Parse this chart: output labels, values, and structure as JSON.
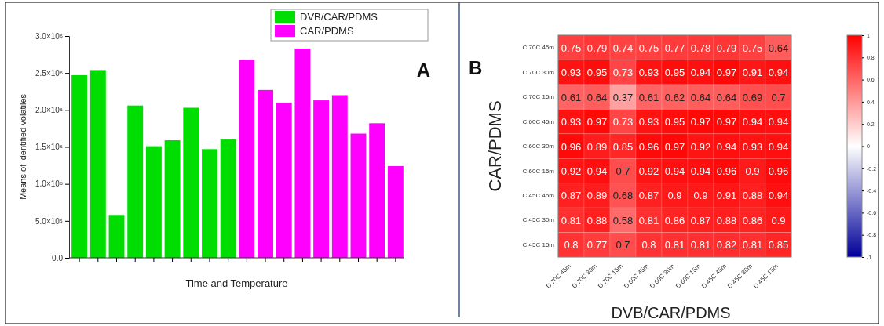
{
  "chart_data": [
    {
      "type": "bar",
      "xlabel": "Time and Temperature",
      "ylabel": "Means of identified volatiles",
      "annotations": [
        "A"
      ],
      "categories": [
        null,
        null,
        null,
        null,
        null,
        null,
        null,
        null,
        null,
        null,
        null,
        null,
        null,
        null,
        null,
        null,
        null,
        null
      ],
      "series": [
        {
          "name": "DVB/CAR/PDMS",
          "color": "#00dd00",
          "values": [
            2470000,
            2540000,
            580000,
            2060000,
            1510000,
            1590000,
            2030000,
            1470000,
            1600000,
            null,
            null,
            null,
            null,
            null,
            null,
            null,
            null,
            null
          ]
        },
        {
          "name": "CAR/PDMS",
          "color": "#ff00ff",
          "values": [
            null,
            null,
            null,
            null,
            null,
            null,
            null,
            null,
            null,
            2680000,
            2270000,
            2100000,
            2830000,
            2130000,
            2200000,
            1680000,
            1820000,
            1240000
          ]
        }
      ],
      "ylim": [
        0,
        3000000
      ],
      "yticks": [
        {
          "value": 0,
          "label": "0.0"
        },
        {
          "value": 500000,
          "label": "5.0×10⁵"
        },
        {
          "value": 1000000,
          "label": "1.0×10⁶"
        },
        {
          "value": 1500000,
          "label": "1.5×10⁶"
        },
        {
          "value": 2000000,
          "label": "2.0×10⁶"
        },
        {
          "value": 2500000,
          "label": "2.5×10⁶"
        },
        {
          "value": 3000000,
          "label": "3.0×10⁶"
        }
      ],
      "legend": "top right"
    },
    {
      "type": "heatmap",
      "xlabel": "DVB/CAR/PDMS",
      "ylabel": "CAR/PDMS",
      "annotations": [
        "B"
      ],
      "categories": [
        "D 70C 45m",
        "D 70C 30m",
        "D 70C 15m",
        "D 60C 45m",
        "D 60C 30m",
        "D 60C 15m",
        "D 45C 45m",
        "D 45C 30m",
        "D 45C 15m"
      ],
      "y_categories": [
        "C 70C 45m",
        "C 70C 30m",
        "C 70C 15m",
        "C 60C 45m",
        "C 60C 30m",
        "C 60C 15m",
        "C 45C 45m",
        "C 45C 30m",
        "C 45C 15m"
      ],
      "cells": [
        [
          0.75,
          0.79,
          0.74,
          0.75,
          0.77,
          0.78,
          0.79,
          0.75,
          0.64
        ],
        [
          0.93,
          0.95,
          0.73,
          0.93,
          0.95,
          0.94,
          0.97,
          0.91,
          0.94
        ],
        [
          0.61,
          0.64,
          0.37,
          0.61,
          0.62,
          0.64,
          0.64,
          0.69,
          0.7
        ],
        [
          0.93,
          0.97,
          0.73,
          0.93,
          0.95,
          0.97,
          0.97,
          0.94,
          0.94
        ],
        [
          0.96,
          0.89,
          0.85,
          0.96,
          0.97,
          0.92,
          0.94,
          0.93,
          0.94
        ],
        [
          0.92,
          0.94,
          0.7,
          0.92,
          0.94,
          0.94,
          0.96,
          0.9,
          0.96
        ],
        [
          0.87,
          0.89,
          0.68,
          0.87,
          0.9,
          0.9,
          0.91,
          0.88,
          0.94
        ],
        [
          0.81,
          0.88,
          0.58,
          0.81,
          0.86,
          0.87,
          0.88,
          0.86,
          0.9
        ],
        [
          0.8,
          0.77,
          0.7,
          0.8,
          0.81,
          0.81,
          0.82,
          0.81,
          0.85
        ]
      ],
      "data_labels": true,
      "clim": [
        -1,
        1
      ],
      "cticks": [
        -1,
        -0.8,
        -0.6,
        -0.4,
        -0.2,
        0,
        0.2,
        0.4,
        0.6,
        0.8,
        1
      ]
    }
  ]
}
